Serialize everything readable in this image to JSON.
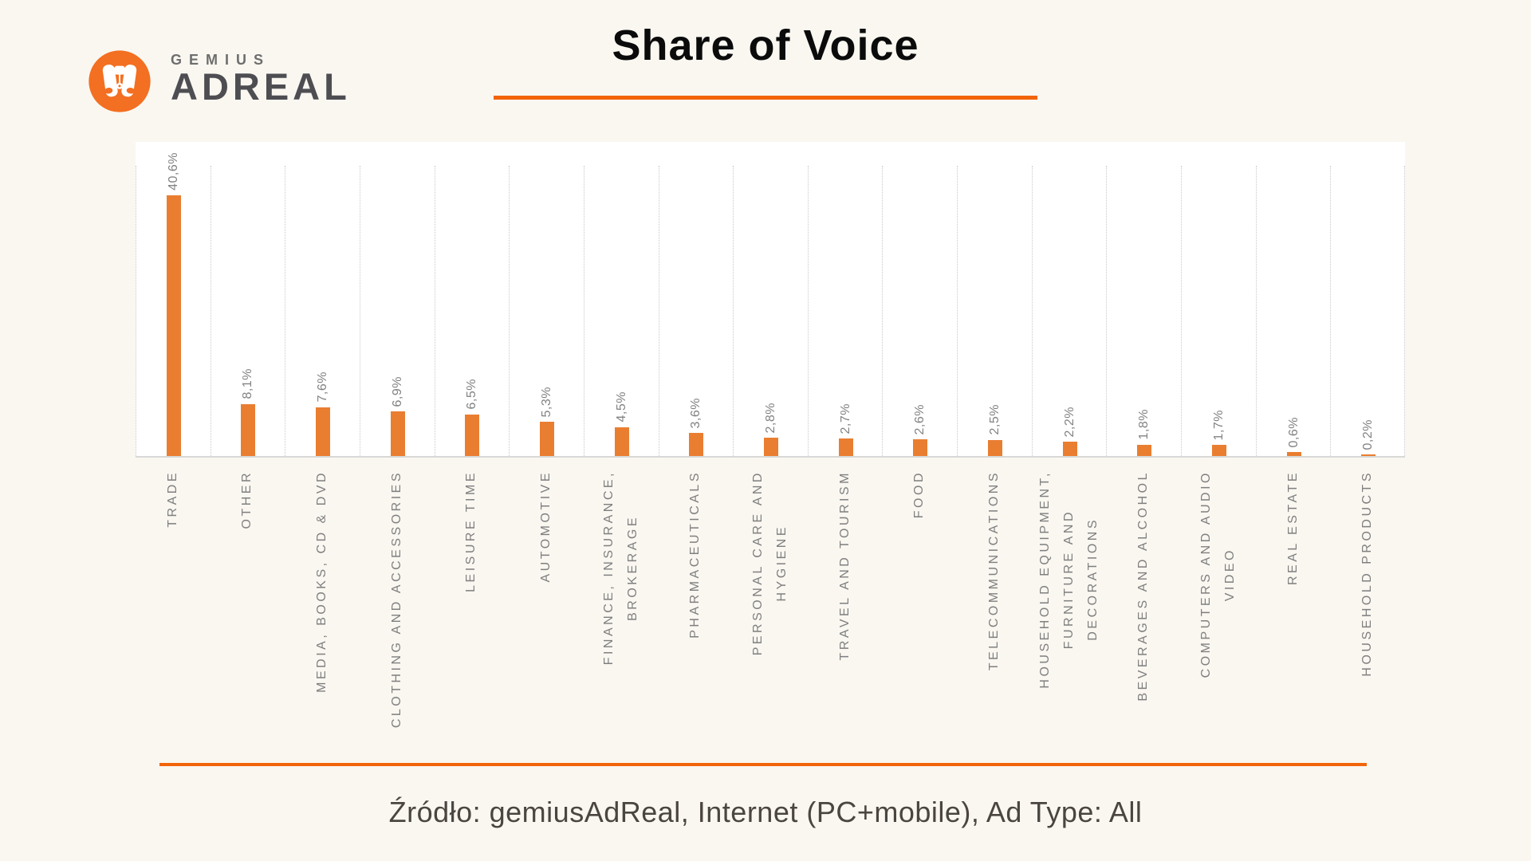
{
  "brand": {
    "name_top": "GEMIUS",
    "name_bottom": "ADREAL",
    "logo_icon": "binoculars-icon",
    "logo_color": "#F36F21"
  },
  "header": {
    "title": "Share of Voice",
    "underline_color": "#F2640A"
  },
  "footer": {
    "divider_color": "#F2640A",
    "source_text": "Źródło: gemiusAdReal, Internet (PC+mobile), Ad Type: All"
  },
  "colors": {
    "page_background": "#FAF7F1",
    "plot_background": "#FFFFFF",
    "bar": "#E97E31",
    "axis_line": "#D8D8D8",
    "gridline": "#C9C9C9",
    "labels": "#7F7F7F"
  },
  "chart_data": {
    "type": "bar",
    "title": "Share of Voice",
    "xlabel": "",
    "ylabel": "",
    "unit": "percent",
    "decimal_separator": ",",
    "ylim": [
      0,
      45
    ],
    "grid": "dotted vertical separators between categories",
    "legend_position": "none",
    "orientation": "vertical-bars",
    "value_label_rotation": -90,
    "category_label_rotation": -90,
    "categories": [
      "TRADE",
      "OTHER",
      "MEDIA, BOOKS, CD & DVD",
      "CLOTHING AND ACCESSORIES",
      "LEISURE TIME",
      "AUTOMOTIVE",
      "FINANCE, INSURANCE, BROKERAGE",
      "PHARMACEUTICALS",
      "PERSONAL CARE AND HYGIENE",
      "TRAVEL AND TOURISM",
      "FOOD",
      "TELECOMMUNICATIONS",
      "HOUSEHOLD EQUIPMENT, FURNITURE AND DECORATIONS",
      "BEVERAGES AND ALCOHOL",
      "COMPUTERS AND AUDIO VIDEO",
      "REAL ESTATE",
      "HOUSEHOLD PRODUCTS"
    ],
    "values": [
      40.6,
      8.1,
      7.6,
      6.9,
      6.5,
      5.3,
      4.5,
      3.6,
      2.8,
      2.7,
      2.6,
      2.5,
      2.2,
      1.8,
      1.7,
      0.6,
      0.2
    ],
    "value_labels": [
      "40,6%",
      "8,1%",
      "7,6%",
      "6,9%",
      "6,5%",
      "5,3%",
      "4,5%",
      "3,6%",
      "2,8%",
      "2,7%",
      "2,6%",
      "2,5%",
      "2,2%",
      "1,8%",
      "1,7%",
      "0,6%",
      "0,2%"
    ],
    "category_label_lines": [
      [
        "TRADE"
      ],
      [
        "OTHER"
      ],
      [
        "MEDIA, BOOKS, CD & DVD"
      ],
      [
        "CLOTHING AND ACCESSORIES"
      ],
      [
        "LEISURE TIME"
      ],
      [
        "AUTOMOTIVE"
      ],
      [
        "FINANCE, INSURANCE,",
        "BROKERAGE"
      ],
      [
        "PHARMACEUTICALS"
      ],
      [
        "PERSONAL CARE AND",
        "HYGIENE"
      ],
      [
        "TRAVEL AND TOURISM"
      ],
      [
        "FOOD"
      ],
      [
        "TELECOMMUNICATIONS"
      ],
      [
        "HOUSEHOLD EQUIPMENT,",
        "FURNITURE AND",
        "DECORATIONS"
      ],
      [
        "BEVERAGES AND ALCOHOL"
      ],
      [
        "COMPUTERS AND AUDIO",
        "VIDEO"
      ],
      [
        "REAL ESTATE"
      ],
      [
        "HOUSEHOLD PRODUCTS"
      ]
    ]
  }
}
